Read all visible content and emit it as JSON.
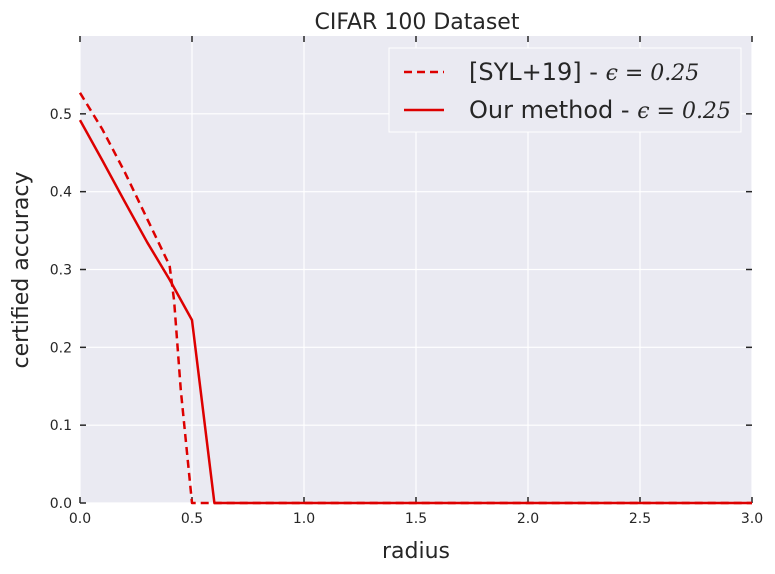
{
  "chart_data": {
    "type": "line",
    "title": "CIFAR 100 Dataset",
    "xlabel": "radius",
    "ylabel": "certified accuracy",
    "xlim": [
      0.0,
      3.0
    ],
    "ylim": [
      0.0,
      0.6
    ],
    "xticks": [
      0.0,
      0.5,
      1.0,
      1.5,
      2.0,
      2.5,
      3.0
    ],
    "xtick_labels": [
      "0.0",
      "0.5",
      "1.0",
      "1.5",
      "2.0",
      "2.5",
      "3.0"
    ],
    "yticks": [
      0.0,
      0.1,
      0.2,
      0.3,
      0.4,
      0.5
    ],
    "ytick_labels": [
      "0.0",
      "0.1",
      "0.2",
      "0.3",
      "0.4",
      "0.5"
    ],
    "grid": true,
    "legend_position": "top-right",
    "series": [
      {
        "name": "[SYL+19] - ",
        "name_math": "ϵ = 0.25",
        "color": "#dd0000",
        "style": "dashed",
        "x": [
          0.0,
          0.1,
          0.2,
          0.3,
          0.4,
          0.42,
          0.45,
          0.5,
          0.55,
          1.0,
          2.0,
          3.0
        ],
        "y": [
          0.527,
          0.48,
          0.425,
          0.365,
          0.305,
          0.26,
          0.145,
          0.0,
          0.0,
          0.0,
          0.0,
          0.0
        ]
      },
      {
        "name": "Our method - ",
        "name_math": "ϵ = 0.25",
        "color": "#dd0000",
        "style": "solid",
        "x": [
          0.0,
          0.1,
          0.2,
          0.3,
          0.4,
          0.5,
          0.6,
          1.0,
          2.0,
          3.0
        ],
        "y": [
          0.492,
          0.44,
          0.387,
          0.335,
          0.287,
          0.235,
          0.0,
          0.0,
          0.0,
          0.0
        ]
      }
    ]
  }
}
